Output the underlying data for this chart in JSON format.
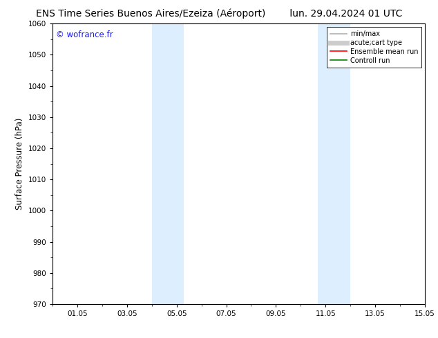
{
  "title": "ENS Time Series Buenos Aires/Ezeiza (Aéroport)        lun. 29.04.2024 01 UTC",
  "title_left": "ENS Time Series Buenos Aires/Ezeiza (Aéroport)",
  "title_right": "lun. 29.04.2024 01 UTC",
  "ylabel": "Surface Pressure (hPa)",
  "ylim": [
    970,
    1060
  ],
  "yticks": [
    970,
    980,
    990,
    1000,
    1010,
    1020,
    1030,
    1040,
    1050,
    1060
  ],
  "xlim_start": 0.0,
  "xlim_end": 15.0,
  "xtick_labels": [
    "01.05",
    "03.05",
    "05.05",
    "07.05",
    "09.05",
    "11.05",
    "13.05",
    "15.05"
  ],
  "xtick_positions": [
    1,
    3,
    5,
    7,
    9,
    11,
    13,
    15
  ],
  "shaded_bands": [
    {
      "x_start": 4.0,
      "x_end": 5.3,
      "color": "#ddeeff"
    },
    {
      "x_start": 10.7,
      "x_end": 12.0,
      "color": "#ddeeff"
    }
  ],
  "watermark": "© wofrance.fr",
  "watermark_color": "#1a1aff",
  "background_color": "#ffffff",
  "plot_bg_color": "#ffffff",
  "legend_entries": [
    {
      "label": "min/max",
      "color": "#b0b0b0",
      "lw": 1.2,
      "style": "solid"
    },
    {
      "label": "acute;cart type",
      "color": "#cccccc",
      "lw": 5,
      "style": "solid"
    },
    {
      "label": "Ensemble mean run",
      "color": "#ff0000",
      "lw": 1.2,
      "style": "solid"
    },
    {
      "label": "Controll run",
      "color": "#008000",
      "lw": 1.2,
      "style": "solid"
    }
  ],
  "title_fontsize": 10,
  "tick_fontsize": 7.5,
  "ylabel_fontsize": 8.5,
  "watermark_fontsize": 8.5,
  "legend_fontsize": 7
}
